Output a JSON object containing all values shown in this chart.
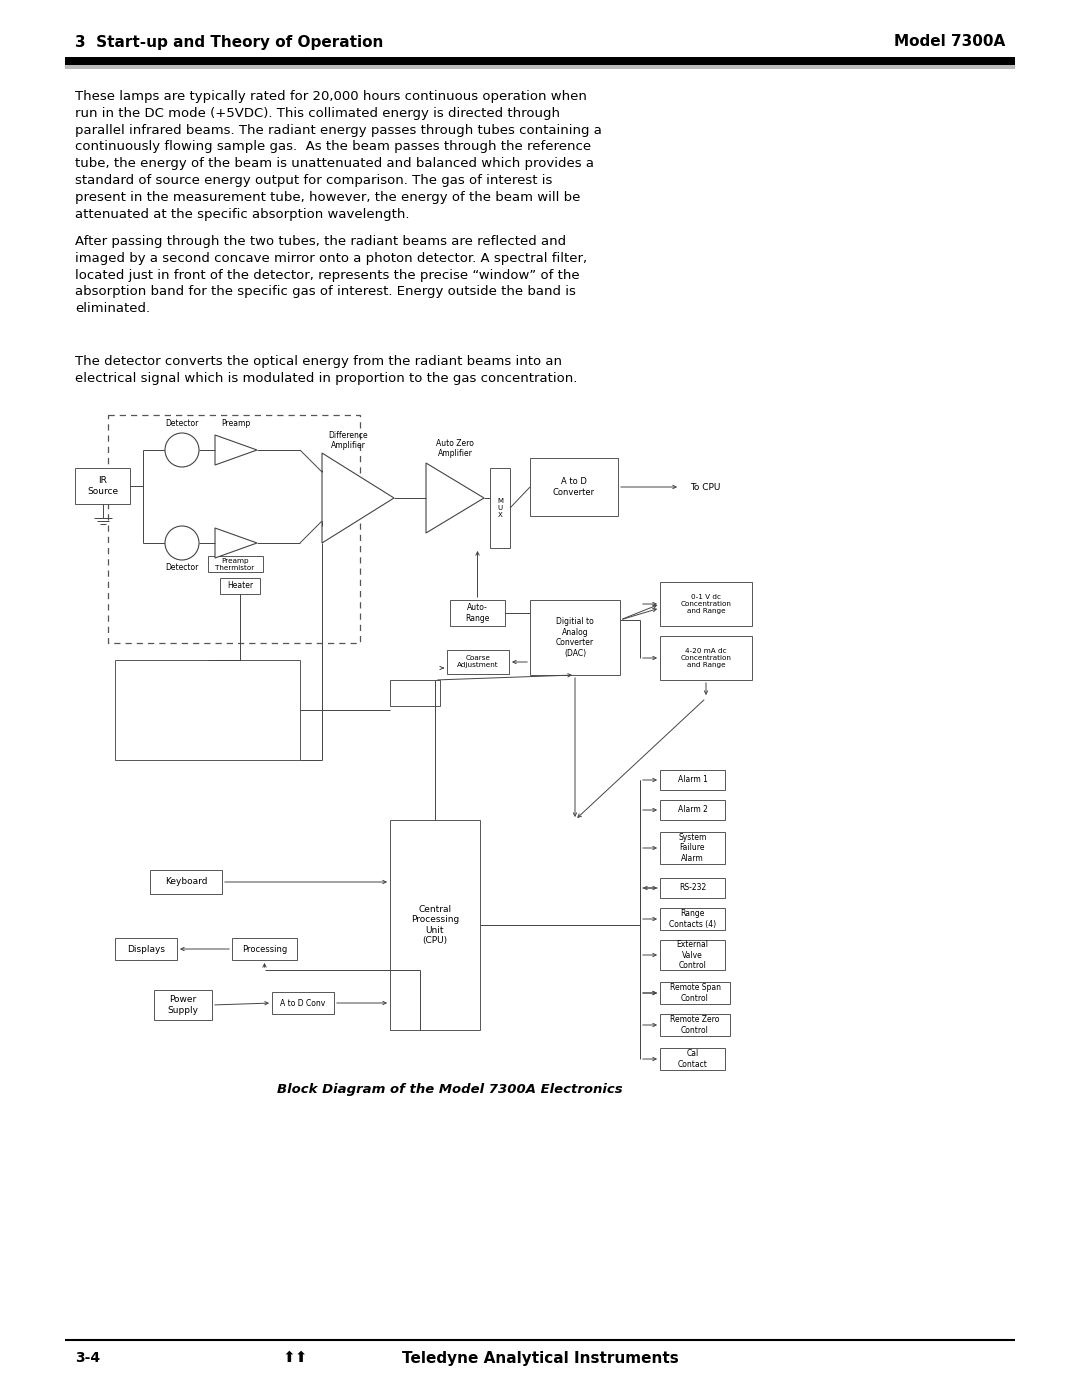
{
  "page_bg": "#ffffff",
  "header_left": "3  Start-up and Theory of Operation",
  "header_right": "Model 7300A",
  "footer_left": "3-4",
  "caption": "Block Diagram of the Model 7300A Electronics",
  "paragraph1": "These lamps are typically rated for 20,000 hours continuous operation when\nrun in the DC mode (+5VDC). This collimated energy is directed through\nparallel infrared beams. The radiant energy passes through tubes containing a\ncontinuously flowing sample gas.  As the beam passes through the reference\ntube, the energy of the beam is unattenuated and balanced which provides a\nstandard of source energy output for comparison. The gas of interest is\npresent in the measurement tube, however, the energy of the beam will be\nattenuated at the specific absorption wavelength.",
  "paragraph2": "After passing through the two tubes, the radiant beams are reflected and\nimaged by a second concave mirror onto a photon detector. A spectral filter,\nlocated just in front of the detector, represents the precise “window” of the\nabsorption band for the specific gas of interest. Energy outside the band is\neliminated.",
  "paragraph3": "The detector converts the optical energy from the radiant beams into an\nelectrical signal which is modulated in proportion to the gas concentration."
}
